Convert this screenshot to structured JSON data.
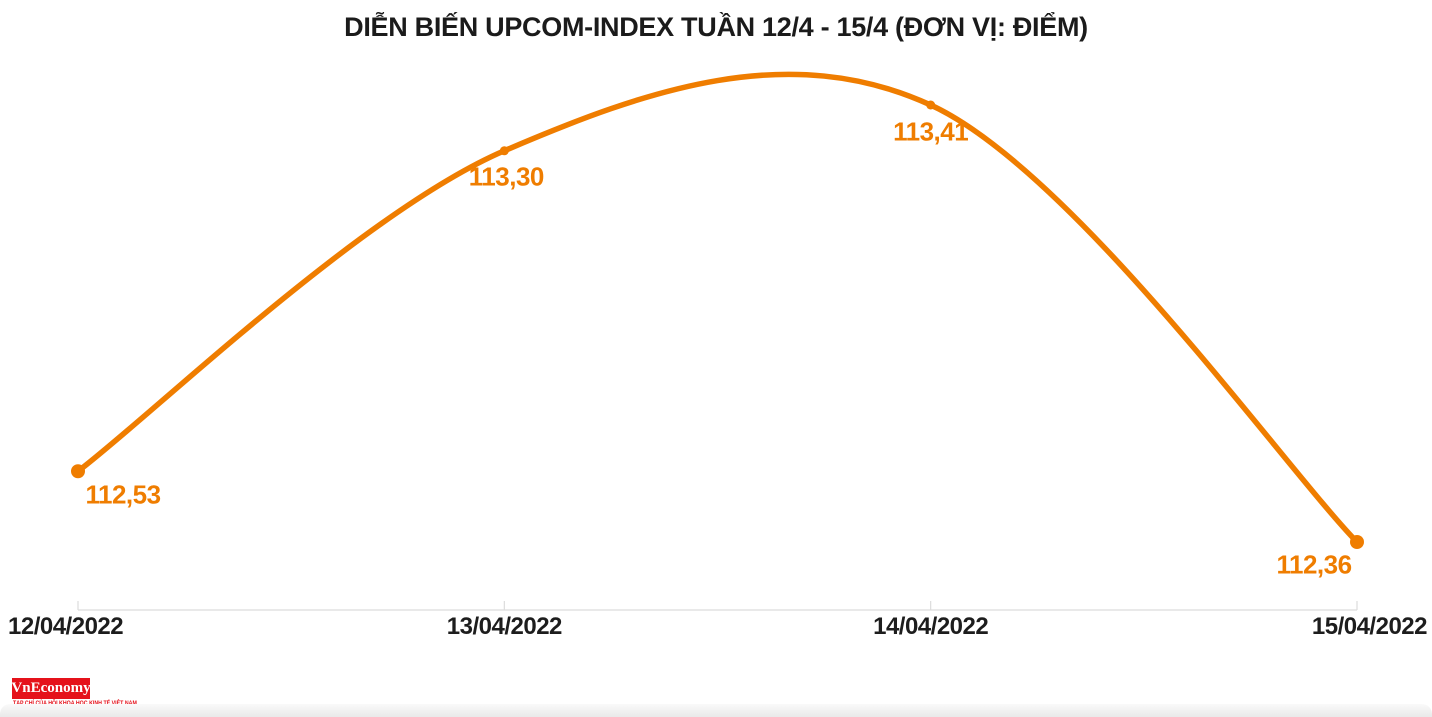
{
  "title": "DIỄN BIẾN UPCOM-INDEX TUẦN 12/4 - 15/4 (ĐƠN VỊ: ĐIỂM)",
  "chart_data": {
    "type": "line",
    "title": "DIỄN BIẾN UPCOM-INDEX TUẦN 12/4 - 15/4 (ĐƠN VỊ: ĐIỂM)",
    "categories": [
      "12/04/2022",
      "13/04/2022",
      "14/04/2022",
      "15/04/2022"
    ],
    "series": [
      {
        "name": "UPCOM-INDEX",
        "values": [
          112.53,
          113.3,
          113.41,
          112.36
        ]
      }
    ],
    "point_labels": [
      "112,53",
      "113,30",
      "113,41",
      "112,36"
    ],
    "ylim": [
      112.36,
      113.41
    ],
    "grid": false,
    "legend_position": "none",
    "line_color": "#ef7d00",
    "point_color": "#ef7d00",
    "value_label_color": "#ef7d00",
    "axis_label_color": "#1d1d1d",
    "axis_line_color": "#dcdcdc"
  },
  "branding": {
    "logo_text": "VnEconomy",
    "logo_bg_color": "#e5121b",
    "logo_text_color": "#ffffff",
    "tagline": "TẠP CHÍ CỦA HỘI KHOA HỌC KINH TẾ VIỆT NAM"
  }
}
